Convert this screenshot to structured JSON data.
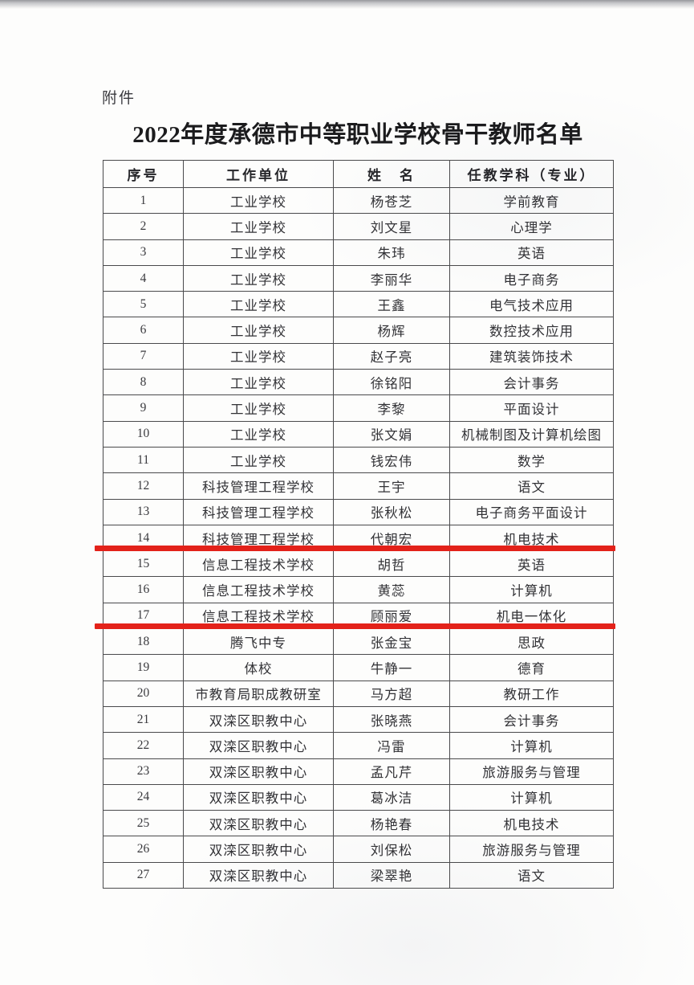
{
  "page": {
    "attachment_label": "附件",
    "title": "2022年度承德市中等职业学校骨干教师名单"
  },
  "table": {
    "headers": [
      "序号",
      "工作单位",
      "姓　名",
      "任教学科（专业）"
    ],
    "rows": [
      [
        "1",
        "工业学校",
        "杨苍芝",
        "学前教育"
      ],
      [
        "2",
        "工业学校",
        "刘文星",
        "心理学"
      ],
      [
        "3",
        "工业学校",
        "朱玮",
        "英语"
      ],
      [
        "4",
        "工业学校",
        "李丽华",
        "电子商务"
      ],
      [
        "5",
        "工业学校",
        "王鑫",
        "电气技术应用"
      ],
      [
        "6",
        "工业学校",
        "杨辉",
        "数控技术应用"
      ],
      [
        "7",
        "工业学校",
        "赵子亮",
        "建筑装饰技术"
      ],
      [
        "8",
        "工业学校",
        "徐铭阳",
        "会计事务"
      ],
      [
        "9",
        "工业学校",
        "李黎",
        "平面设计"
      ],
      [
        "10",
        "工业学校",
        "张文娟",
        "机械制图及计算机绘图"
      ],
      [
        "11",
        "工业学校",
        "钱宏伟",
        "数学"
      ],
      [
        "12",
        "科技管理工程学校",
        "王宇",
        "语文"
      ],
      [
        "13",
        "科技管理工程学校",
        "张秋松",
        "电子商务平面设计"
      ],
      [
        "14",
        "科技管理工程学校",
        "代朝宏",
        "机电技术"
      ],
      [
        "15",
        "信息工程技术学校",
        "胡哲",
        "英语"
      ],
      [
        "16",
        "信息工程技术学校",
        "黄蕊",
        "计算机"
      ],
      [
        "17",
        "信息工程技术学校",
        "顾丽爱",
        "机电一体化"
      ],
      [
        "18",
        "腾飞中专",
        "张金宝",
        "思政"
      ],
      [
        "19",
        "体校",
        "牛静一",
        "德育"
      ],
      [
        "20",
        "市教育局职成教研室",
        "马方超",
        "教研工作"
      ],
      [
        "21",
        "双滦区职教中心",
        "张晓燕",
        "会计事务"
      ],
      [
        "22",
        "双滦区职教中心",
        "冯雷",
        "计算机"
      ],
      [
        "23",
        "双滦区职教中心",
        "孟凡芹",
        "旅游服务与管理"
      ],
      [
        "24",
        "双滦区职教中心",
        "葛冰洁",
        "计算机"
      ],
      [
        "25",
        "双滦区职教中心",
        "杨艳春",
        "机电技术"
      ],
      [
        "26",
        "双滦区职教中心",
        "刘保松",
        "旅游服务与管理"
      ],
      [
        "27",
        "双滦区职教中心",
        "梁翠艳",
        "语文"
      ]
    ]
  },
  "annotations": {
    "highlight_color": "#e3221a",
    "highlight_lines": [
      {
        "after_row": 14
      },
      {
        "after_row": 17
      }
    ]
  }
}
